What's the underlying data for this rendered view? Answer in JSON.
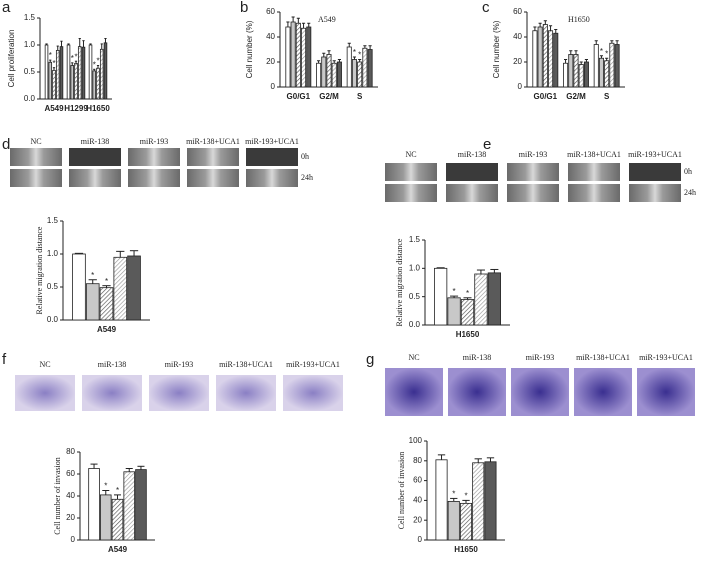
{
  "chart_data": [
    {
      "type": "bar",
      "panel": "a",
      "ylabel": "Cell proliferation",
      "categories": [
        "A549",
        "H1299",
        "H1650"
      ],
      "ylim": [
        0,
        1.5
      ],
      "yticks": [
        {
          "value": 0,
          "label": "0.0"
        },
        {
          "value": 0.5,
          "label": "0.5"
        },
        {
          "value": 1,
          "label": "1.0"
        },
        {
          "value": 1.5,
          "label": "1.5"
        }
      ],
      "series": [
        {
          "color": "#ffffff",
          "hatch": false,
          "values": [
            1.0,
            1.0,
            1.0
          ],
          "errors": [
            0.02,
            0.02,
            0.02
          ]
        },
        {
          "color": "#c8c8c8",
          "hatch": false,
          "values": [
            0.68,
            0.62,
            0.52
          ],
          "errors": [
            0.04,
            0.05,
            0.03
          ],
          "marks": [
            "*",
            "*",
            "*"
          ]
        },
        {
          "color": "#555555",
          "hatch": true,
          "values": [
            0.53,
            0.66,
            0.57
          ],
          "errors": [
            0.05,
            0.04,
            0.05
          ],
          "marks": [
            "*",
            "*",
            "*"
          ]
        },
        {
          "color": "#999999",
          "hatch": true,
          "values": [
            0.9,
            0.97,
            0.92
          ],
          "errors": [
            0.08,
            0.15,
            0.1
          ]
        },
        {
          "color": "#5a5a5a",
          "hatch": false,
          "values": [
            0.97,
            0.96,
            1.04
          ],
          "errors": [
            0.1,
            0.12,
            0.08
          ]
        }
      ]
    },
    {
      "type": "bar",
      "panel": "b",
      "title": "A549",
      "ylabel": "Cell number (%)",
      "categories": [
        "G0/G1",
        "G2/M",
        "S"
      ],
      "ylim": [
        0,
        60
      ],
      "yticks": [
        0,
        20,
        40,
        60
      ],
      "series": [
        {
          "color": "#ffffff",
          "hatch": false,
          "values": [
            48,
            19,
            32
          ],
          "errors": [
            4,
            2,
            3
          ]
        },
        {
          "color": "#c8c8c8",
          "hatch": false,
          "values": [
            52,
            24,
            22
          ],
          "errors": [
            4,
            3,
            2
          ],
          "marks": [
            null,
            null,
            "*"
          ]
        },
        {
          "color": "#555555",
          "hatch": true,
          "values": [
            51,
            26,
            20
          ],
          "errors": [
            4,
            3,
            2
          ],
          "marks": [
            null,
            null,
            "*"
          ]
        },
        {
          "color": "#999999",
          "hatch": true,
          "values": [
            47,
            19,
            31
          ],
          "errors": [
            4,
            2,
            2
          ]
        },
        {
          "color": "#5a5a5a",
          "hatch": false,
          "values": [
            48,
            20,
            30
          ],
          "errors": [
            3,
            2,
            3
          ]
        }
      ]
    },
    {
      "type": "bar",
      "panel": "c",
      "title": "H1650",
      "ylabel": "Cell number (%)",
      "categories": [
        "G0/G1",
        "G2/M",
        "S"
      ],
      "ylim": [
        0,
        60
      ],
      "yticks": [
        0,
        20,
        40,
        60
      ],
      "series": [
        {
          "color": "#ffffff",
          "hatch": false,
          "values": [
            45,
            19,
            34
          ],
          "errors": [
            3,
            3,
            3
          ]
        },
        {
          "color": "#c8c8c8",
          "hatch": false,
          "values": [
            48,
            26,
            23
          ],
          "errors": [
            3,
            3,
            2
          ],
          "marks": [
            null,
            null,
            "*"
          ]
        },
        {
          "color": "#555555",
          "hatch": true,
          "values": [
            50,
            26,
            21
          ],
          "errors": [
            3,
            3,
            2
          ],
          "marks": [
            null,
            null,
            "*"
          ]
        },
        {
          "color": "#999999",
          "hatch": true,
          "values": [
            45,
            18,
            35
          ],
          "errors": [
            4,
            2,
            2
          ]
        },
        {
          "color": "#5a5a5a",
          "hatch": false,
          "values": [
            43,
            20,
            34
          ],
          "errors": [
            3,
            2,
            3
          ]
        }
      ]
    },
    {
      "type": "bar",
      "panel": "d",
      "ylabel": "Relative migration distance",
      "categories": [
        "A549"
      ],
      "image_labels": [
        "NC",
        "miR-138",
        "miR-193",
        "miR-138+UCA1",
        "miR-193+UCA1"
      ],
      "row_labels": [
        "0h",
        "24h"
      ],
      "ylim": [
        0,
        1.5
      ],
      "yticks": [
        {
          "value": 0,
          "label": "0.0"
        },
        {
          "value": 0.5,
          "label": "0.5"
        },
        {
          "value": 1,
          "label": "1.0"
        },
        {
          "value": 1.5,
          "label": "1.5"
        }
      ],
      "series": [
        {
          "color": "#ffffff",
          "hatch": false,
          "values": [
            1.0
          ],
          "errors": [
            0.01
          ]
        },
        {
          "color": "#c8c8c8",
          "hatch": false,
          "values": [
            0.55
          ],
          "errors": [
            0.06
          ],
          "marks": [
            "*"
          ]
        },
        {
          "color": "#555555",
          "hatch": true,
          "values": [
            0.49
          ],
          "errors": [
            0.03
          ],
          "marks": [
            "*"
          ]
        },
        {
          "color": "#999999",
          "hatch": true,
          "values": [
            0.95
          ],
          "errors": [
            0.09
          ]
        },
        {
          "color": "#5a5a5a",
          "hatch": false,
          "values": [
            0.97
          ],
          "errors": [
            0.08
          ]
        }
      ]
    },
    {
      "type": "bar",
      "panel": "e",
      "ylabel": "Relative migration distance",
      "categories": [
        "H1650"
      ],
      "image_labels": [
        "NC",
        "miR-138",
        "miR-193",
        "miR-138+UCA1",
        "miR-193+UCA1"
      ],
      "row_labels": [
        "0h",
        "24h"
      ],
      "ylim": [
        0,
        1.5
      ],
      "yticks": [
        {
          "value": 0,
          "label": "0.0"
        },
        {
          "value": 0.5,
          "label": "0.5"
        },
        {
          "value": 1,
          "label": "1.0"
        },
        {
          "value": 1.5,
          "label": "1.5"
        }
      ],
      "series": [
        {
          "color": "#ffffff",
          "hatch": false,
          "values": [
            1.0
          ],
          "errors": [
            0.01
          ]
        },
        {
          "color": "#c8c8c8",
          "hatch": false,
          "values": [
            0.48
          ],
          "errors": [
            0.03
          ],
          "marks": [
            "*"
          ]
        },
        {
          "color": "#555555",
          "hatch": true,
          "values": [
            0.45
          ],
          "errors": [
            0.03
          ],
          "marks": [
            "*"
          ]
        },
        {
          "color": "#999999",
          "hatch": true,
          "values": [
            0.9
          ],
          "errors": [
            0.07
          ]
        },
        {
          "color": "#5a5a5a",
          "hatch": false,
          "values": [
            0.92
          ],
          "errors": [
            0.06
          ]
        }
      ]
    },
    {
      "type": "bar",
      "panel": "f",
      "ylabel": "Cell number of invasion",
      "categories": [
        "A549"
      ],
      "image_labels": [
        "NC",
        "miR-138",
        "miR-193",
        "miR-138+UCA1",
        "miR-193+UCA1"
      ],
      "ylim": [
        0,
        80
      ],
      "yticks": [
        0,
        20,
        40,
        60,
        80
      ],
      "series": [
        {
          "color": "#ffffff",
          "hatch": false,
          "values": [
            65
          ],
          "errors": [
            4
          ]
        },
        {
          "color": "#c8c8c8",
          "hatch": false,
          "values": [
            41
          ],
          "errors": [
            4
          ],
          "marks": [
            "*"
          ]
        },
        {
          "color": "#555555",
          "hatch": true,
          "values": [
            37
          ],
          "errors": [
            4
          ],
          "marks": [
            "*"
          ]
        },
        {
          "color": "#999999",
          "hatch": true,
          "values": [
            62
          ],
          "errors": [
            3
          ]
        },
        {
          "color": "#5a5a5a",
          "hatch": false,
          "values": [
            64
          ],
          "errors": [
            3
          ]
        }
      ]
    },
    {
      "type": "bar",
      "panel": "g",
      "ylabel": "Cell number of invasion",
      "categories": [
        "H1650"
      ],
      "image_labels": [
        "NC",
        "miR-138",
        "miR-193",
        "miR-138+UCA1",
        "miR-193+UCA1"
      ],
      "ylim": [
        0,
        100
      ],
      "yticks": [
        0,
        20,
        40,
        60,
        80,
        100
      ],
      "series": [
        {
          "color": "#ffffff",
          "hatch": false,
          "values": [
            81
          ],
          "errors": [
            5
          ]
        },
        {
          "color": "#c8c8c8",
          "hatch": false,
          "values": [
            39
          ],
          "errors": [
            3
          ],
          "marks": [
            "*"
          ]
        },
        {
          "color": "#555555",
          "hatch": true,
          "values": [
            37
          ],
          "errors": [
            3
          ],
          "marks": [
            "*"
          ]
        },
        {
          "color": "#999999",
          "hatch": true,
          "values": [
            78
          ],
          "errors": [
            4
          ]
        },
        {
          "color": "#5a5a5a",
          "hatch": false,
          "values": [
            79
          ],
          "errors": [
            4
          ]
        }
      ]
    }
  ]
}
